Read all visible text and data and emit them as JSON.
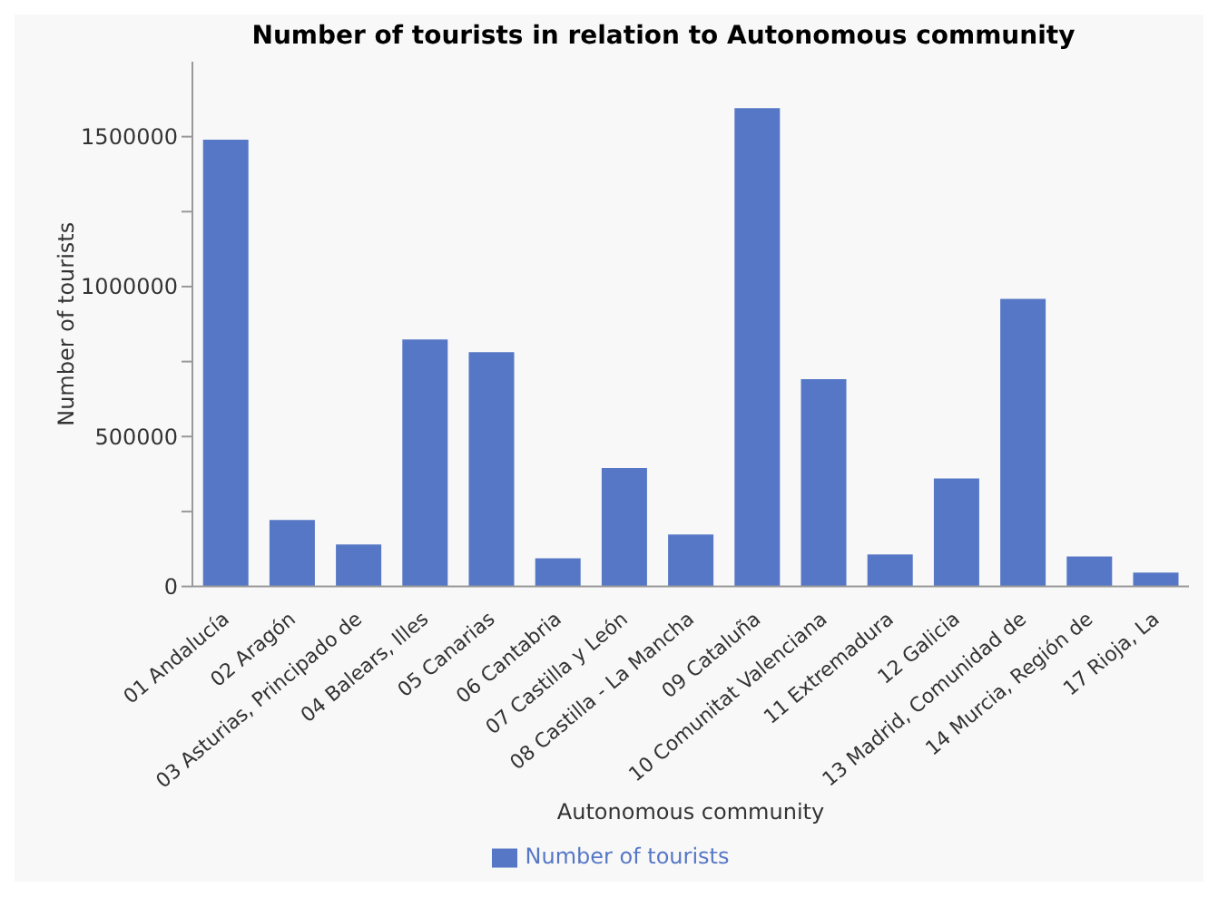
{
  "chart_data": {
    "type": "bar",
    "title": "Number of tourists in relation to Autonomous community",
    "xlabel": "Autonomous community",
    "ylabel": "Number of tourists",
    "categories": [
      "01 Andalucía",
      "02 Aragón",
      "03 Asturias, Principado de",
      "04 Balears, Illes",
      "05 Canarias",
      "06 Cantabria",
      "07 Castilla y León",
      "08 Castilla - La Mancha",
      "09 Cataluña",
      "10 Comunitat Valenciana",
      "11 Extremadura",
      "12 Galicia",
      "13 Madrid, Comunidad de",
      "14 Murcia, Región de",
      "17 Rioja, La"
    ],
    "series": [
      {
        "name": "Number of tourists",
        "color": "#5677c6",
        "values": [
          1490000,
          222000,
          140000,
          824000,
          781000,
          94000,
          395000,
          173000,
          1595000,
          691000,
          107000,
          360000,
          959000,
          100000,
          46000
        ]
      }
    ],
    "ylim": [
      0,
      1750000
    ],
    "yticks": [
      0,
      {
        "value": 250000,
        "label": null
      },
      500000,
      {
        "value": 750000,
        "label": null
      },
      1000000,
      {
        "value": 1250000,
        "label": null
      },
      1500000
    ],
    "grid": false,
    "legend": "bottom"
  }
}
